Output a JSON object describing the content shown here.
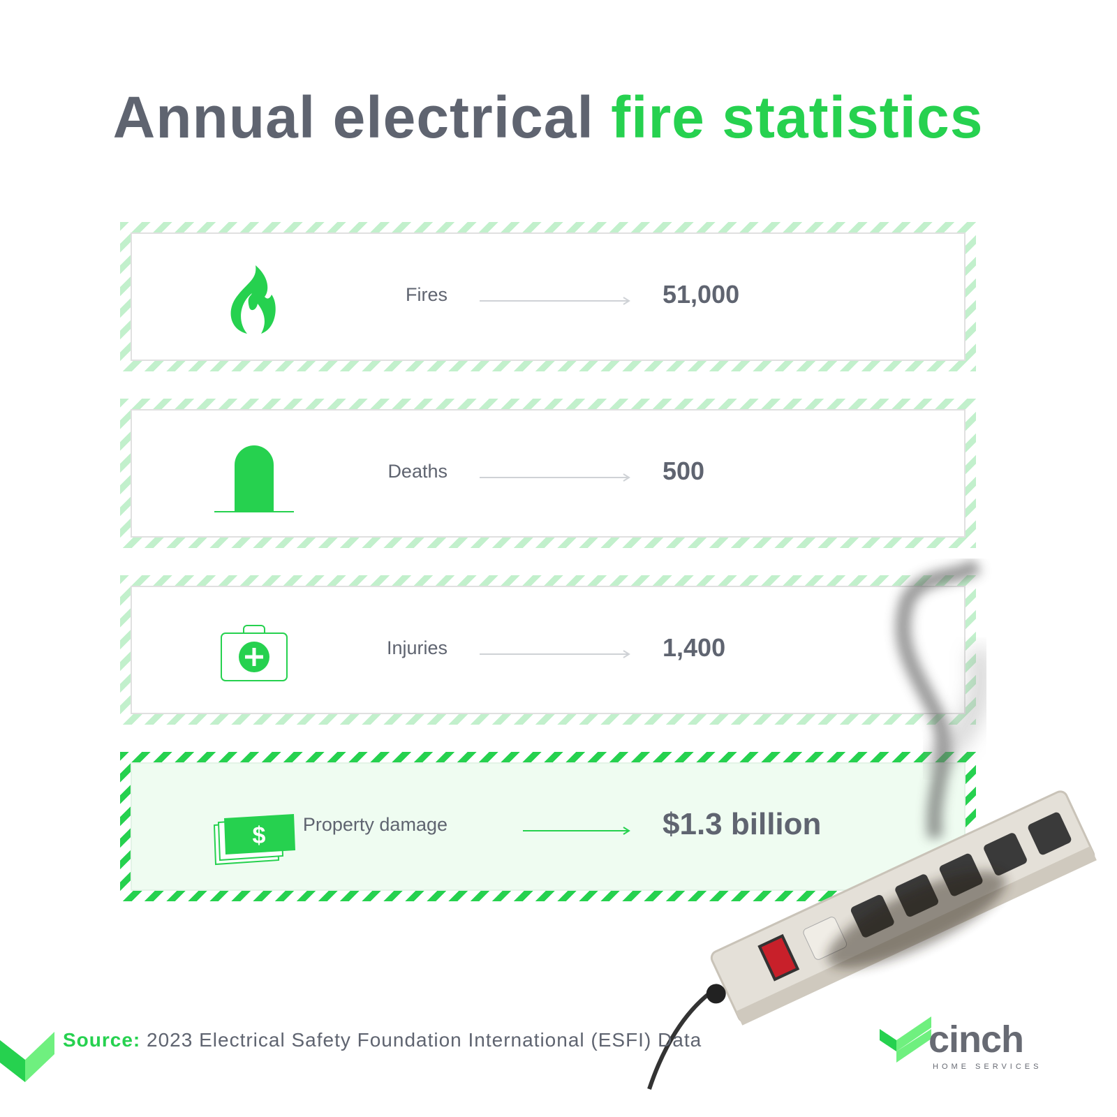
{
  "title": {
    "part1": "Annual electrical",
    "part2": "fire statistics"
  },
  "stats": [
    {
      "icon": "fire-icon",
      "label": "Fires",
      "value": "51,000"
    },
    {
      "icon": "tombstone-icon",
      "label": "Deaths",
      "value": "500"
    },
    {
      "icon": "first-aid-kit-icon",
      "label": "Injuries",
      "value": "1,400"
    },
    {
      "icon": "money-icon",
      "label": "Property damage",
      "value": "$1.3 billion",
      "highlighted": true
    }
  ],
  "footer": {
    "source_label": "Source:",
    "source_text": "2023 Electrical Safety Foundation International (ESFI) Data"
  },
  "logo": {
    "name": "cinch",
    "tagline": "HOME SERVICES"
  },
  "colors": {
    "accent": "#26d14f",
    "light_accent": "#c2f0cc",
    "text": "#5f6470"
  }
}
